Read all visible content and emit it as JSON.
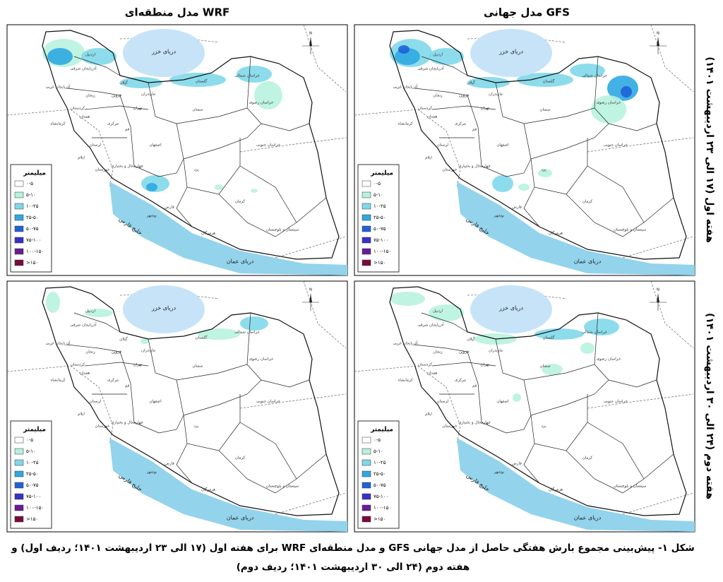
{
  "columns": [
    "مدل منطقه‌ای WRF",
    "مدل جهانی GFS"
  ],
  "rows": [
    "هفته اول (۱۷ الی ۲۳ اردیبهشت ۱۴۰۱)",
    "هفته دوم (۲۴ الی ۳۰ اردیبهشت ۱۴۰۱)"
  ],
  "map": {
    "north": "N",
    "seas": [
      "دریای خزر",
      "خلیج فارس",
      "دریای عمان"
    ],
    "provinces": [
      "اردبیل",
      "آذربایجان شرقی",
      "آذربایجان غربی",
      "زنجان",
      "گیلان",
      "کردستان",
      "قزوین",
      "مازندران",
      "گلستان",
      "خراسان شمالی",
      "خراسان رضوی",
      "تهران",
      "سمنان",
      "کرمانشاه",
      "همدان",
      "مرکزی",
      "قم",
      "لرستان",
      "ایلام",
      "اصفهان",
      "خراسان جنوبی",
      "خوزستان",
      "چهارمحال و بختیاری",
      "یزد",
      "کرمان",
      "فارس",
      "بوشهر",
      "هرمزگان",
      "سیستان و بلوچستان"
    ]
  },
  "legend": {
    "title": "میلیمتر",
    "classes": [
      "۰-۵",
      "۵-۱۰",
      "۱۰-۲۵",
      "۲۵-۵۰",
      "۵۰-۷۵",
      "۷۵-۱۰۰",
      "۱۰۰-۱۵۰",
      ">۱۵۰"
    ],
    "colors": [
      "#ffffff",
      "#b8f2df",
      "#7fd8ea",
      "#2fa8e2",
      "#1f62d8",
      "#3a30c6",
      "#6c1a98",
      "#7a0a3c"
    ]
  },
  "caption": [
    "شکل ۱- پیش‌بینی مجموع بارش هفتگی حاصل از مدل جهانی GFS و مدل منطقه‌ای WRF برای هفته اول (۱۷ الی ۲۳ اردیبهشت ۱۴۰۱؛ ردیف اول) و",
    "هفته دوم (۲۴ الی ۳۰ اردیبهشت ۱۴۰۱؛ ردیف دوم)"
  ]
}
